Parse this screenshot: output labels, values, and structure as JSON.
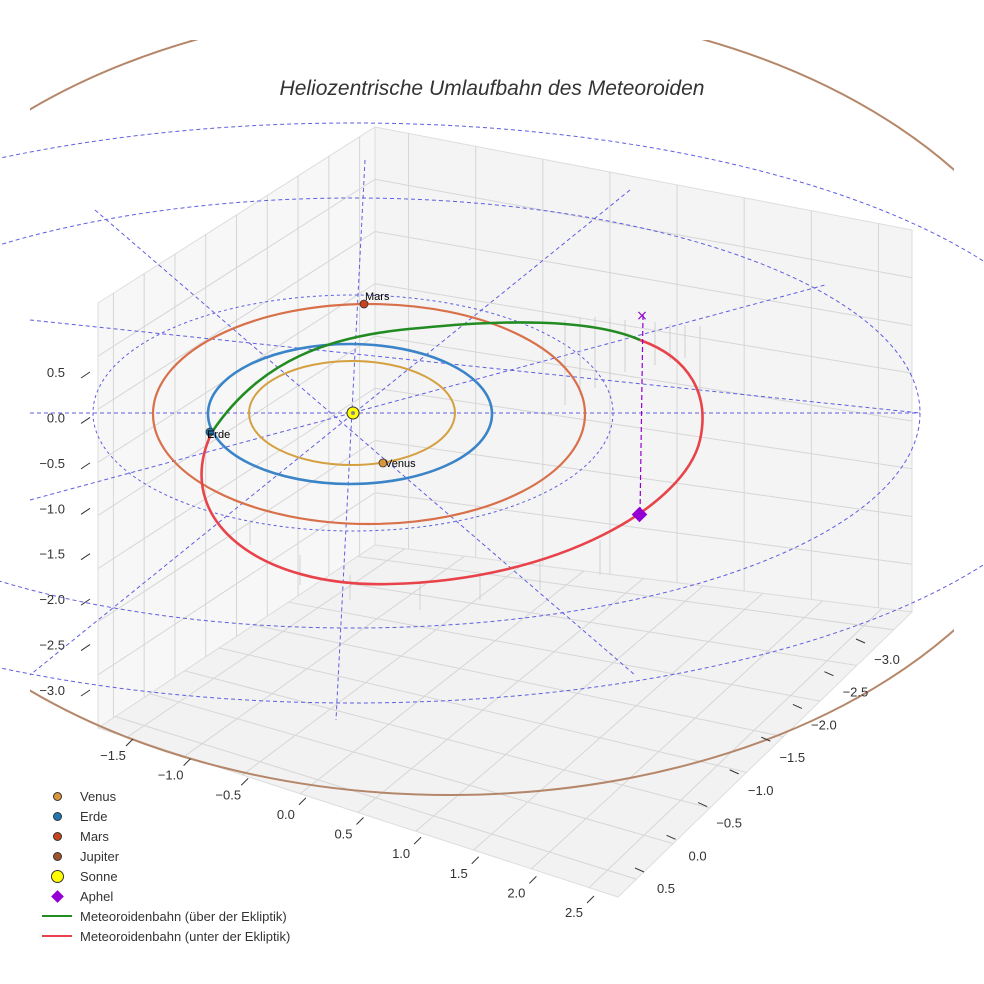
{
  "chart_data": {
    "type": "line3d",
    "title": "Heliozentrische Umlaufbahn des Meteoroiden",
    "z_ticks": [
      "0.5",
      "0.0",
      "−0.5",
      "−1.0",
      "−1.5",
      "−2.0",
      "−2.5",
      "−3.0"
    ],
    "x_ticks": [
      "−1.5",
      "−1.0",
      "−0.5",
      "0.0",
      "0.5",
      "1.0",
      "1.5",
      "2.0",
      "2.5"
    ],
    "y_ticks": [
      "−3.0",
      "−2.5",
      "−2.0",
      "−1.5",
      "−1.0",
      "−0.5",
      "0.0",
      "0.5"
    ],
    "planets": [
      {
        "name": "Venus",
        "orbit_radius_au": 0.72,
        "color": "#d8963a",
        "orbit_color": "#d4a040"
      },
      {
        "name": "Erde",
        "orbit_radius_au": 1.0,
        "color": "#1f77b4",
        "orbit_color": "#3b84c8"
      },
      {
        "name": "Mars",
        "orbit_radius_au": 1.52,
        "color": "#c8431f",
        "orbit_color": "#d8704a"
      },
      {
        "name": "Jupiter",
        "orbit_radius_au": 5.2,
        "color": "#a0522d",
        "orbit_color": "#b5876a"
      }
    ],
    "sun": {
      "name": "Sonne",
      "color": "#ffff00"
    },
    "aphel": {
      "name": "Aphel",
      "color": "#9400d3"
    },
    "meteoroid_orbit": {
      "above_label": "Meteoroidenbahn (über der Ekliptik)",
      "below_label": "Meteoroidenbahn (unter der Ekliptik)",
      "above_color": "#228b22",
      "below_color": "#e8434a"
    },
    "grid": true
  },
  "legend": {
    "items": [
      {
        "label": "Venus",
        "kind": "circle",
        "color": "#d8963a"
      },
      {
        "label": "Erde",
        "kind": "circle",
        "color": "#1f77b4"
      },
      {
        "label": "Mars",
        "kind": "circle",
        "color": "#c8431f"
      },
      {
        "label": "Jupiter",
        "kind": "circle",
        "color": "#a0522d"
      },
      {
        "label": "Sonne",
        "kind": "sun",
        "color": "#ffff00"
      },
      {
        "label": "Aphel",
        "kind": "diamond",
        "color": "#9400d3"
      },
      {
        "label": "Meteoroidenbahn (über der Ekliptik)",
        "kind": "line",
        "color": "#228b22"
      },
      {
        "label": "Meteoroidenbahn (unter der Ekliptik)",
        "kind": "line",
        "color": "#e8434a"
      }
    ]
  }
}
